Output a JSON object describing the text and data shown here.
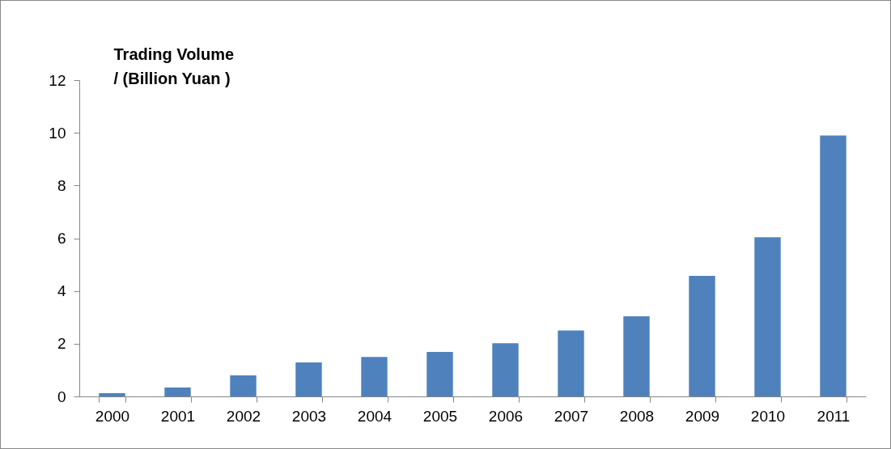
{
  "chart_data": {
    "type": "bar",
    "ylabel": "Trading Volume\n/ (Billion Yuan )",
    "categories": [
      "2000",
      "2001",
      "2002",
      "2003",
      "2004",
      "2005",
      "2006",
      "2007",
      "2008",
      "2009",
      "2010",
      "2011"
    ],
    "values": [
      0.12,
      0.34,
      0.8,
      1.29,
      1.5,
      1.69,
      2.02,
      2.5,
      3.04,
      4.57,
      6.04,
      9.9
    ],
    "color": "#4f81bd",
    "ylim": [
      0,
      12
    ],
    "yticks": [
      0,
      2,
      4,
      6,
      8,
      10,
      12
    ],
    "grid": false
  }
}
